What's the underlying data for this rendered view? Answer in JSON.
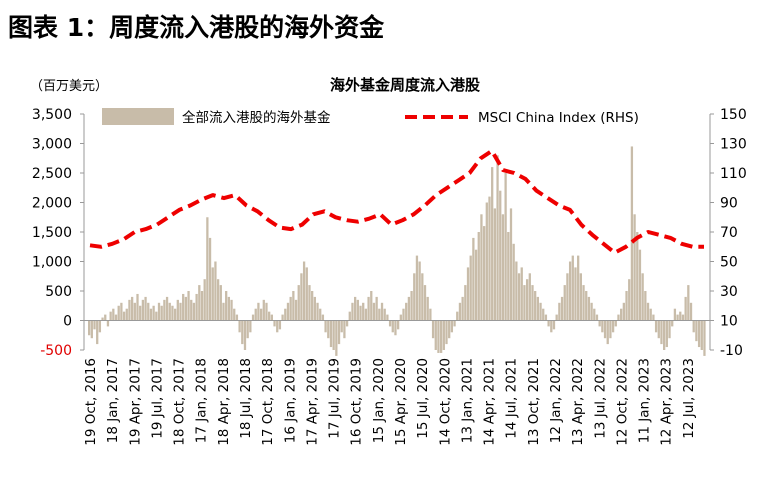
{
  "figure": {
    "title": "图表 1：周度流入港股的海外资金"
  },
  "chart_data": {
    "type": "bar+line",
    "title": "海外基金周度流入港股",
    "y_left_label": "（百万美元）",
    "y_left_ticks": [
      "3,500",
      "3,000",
      "2,500",
      "2,000",
      "1,500",
      "1,000",
      "500",
      "0",
      "-500"
    ],
    "y_left_values": [
      3500,
      3000,
      2500,
      2000,
      1500,
      1000,
      500,
      0,
      -500
    ],
    "y_left_range": [
      -500,
      3500
    ],
    "y_right_ticks": [
      "150",
      "130",
      "110",
      "90",
      "70",
      "50",
      "30",
      "10",
      "-10"
    ],
    "y_right_values": [
      150,
      130,
      110,
      90,
      70,
      50,
      30,
      10,
      -10
    ],
    "y_right_range": [
      -10,
      150
    ],
    "x_tick_labels": [
      "19 Oct, 2016",
      "18 Jan, 2017",
      "19 Apr, 2017",
      "19 Jul, 2017",
      "18 Oct, 2017",
      "17 Jan, 2018",
      "18 Apr, 2018",
      "18 Jul, 2018",
      "17 Oct, 2018",
      "16 Jan, 2019",
      "17 Apr, 2019",
      "17 Jul, 2019",
      "16 Oct, 2019",
      "15 Jan, 2020",
      "15 Apr, 2020",
      "15 Jul, 2020",
      "14 Oct, 2020",
      "13 Jan, 2021",
      "14 Apr, 2021",
      "14 Jul, 2021",
      "13 Oct, 2021",
      "12 Jan, 2022",
      "13 Apr, 2022",
      "13 Jul, 2022",
      "12 Oct, 2022",
      "11 Jan, 2023",
      "12 Apr, 2023",
      "12 Jul, 2023"
    ],
    "legend": {
      "bars": "全部流入港股的海外基金",
      "line": "MSCI China Index (RHS)"
    },
    "colors": {
      "bars": "#c8bca9",
      "line": "#ee0000",
      "negative_tick": "#e00000"
    },
    "bars_series": {
      "name": "全部流入港股的海外基金",
      "values": [
        -250,
        -300,
        -150,
        -400,
        -200,
        50,
        100,
        -100,
        150,
        200,
        100,
        250,
        300,
        150,
        200,
        350,
        400,
        300,
        450,
        250,
        350,
        400,
        300,
        200,
        250,
        150,
        300,
        250,
        350,
        400,
        300,
        250,
        200,
        350,
        300,
        450,
        400,
        500,
        350,
        300,
        450,
        600,
        500,
        700,
        1750,
        1400,
        900,
        1000,
        700,
        600,
        300,
        500,
        400,
        350,
        200,
        100,
        -200,
        -400,
        -500,
        -300,
        -200,
        100,
        200,
        300,
        200,
        350,
        300,
        150,
        100,
        -100,
        -200,
        -150,
        100,
        200,
        300,
        400,
        500,
        350,
        600,
        800,
        1000,
        900,
        600,
        500,
        400,
        300,
        200,
        100,
        -200,
        -300,
        -450,
        -500,
        -600,
        -400,
        -200,
        -300,
        -100,
        150,
        300,
        400,
        350,
        250,
        300,
        200,
        400,
        500,
        300,
        400,
        200,
        300,
        200,
        100,
        -100,
        -200,
        -250,
        -150,
        100,
        200,
        300,
        400,
        500,
        800,
        1100,
        1000,
        800,
        600,
        400,
        200,
        -300,
        -500,
        -550,
        -550,
        -500,
        -400,
        -300,
        -200,
        -100,
        150,
        300,
        400,
        600,
        900,
        1100,
        1400,
        1200,
        1500,
        1800,
        1600,
        2000,
        2100,
        2600,
        1900,
        2800,
        2200,
        1800,
        2500,
        1500,
        1900,
        1300,
        1000,
        800,
        900,
        600,
        700,
        800,
        600,
        500,
        400,
        300,
        200,
        100,
        -100,
        -200,
        -150,
        100,
        300,
        400,
        600,
        800,
        1000,
        1100,
        900,
        1100,
        800,
        600,
        500,
        400,
        300,
        200,
        100,
        -100,
        -200,
        -300,
        -400,
        -300,
        -200,
        -100,
        100,
        200,
        300,
        500,
        700,
        2950,
        1800,
        1500,
        1200,
        800,
        500,
        300,
        200,
        100,
        -200,
        -300,
        -400,
        -500,
        -450,
        -300,
        -100,
        200,
        100,
        150,
        100,
        400,
        600,
        300,
        -200,
        -350,
        -450,
        -500,
        -600
      ]
    },
    "line_series": {
      "name": "MSCI China Index (RHS)",
      "points": [
        [
          0,
          61
        ],
        [
          0.02,
          60
        ],
        [
          0.04,
          62
        ],
        [
          0.06,
          65
        ],
        [
          0.08,
          70
        ],
        [
          0.1,
          72
        ],
        [
          0.12,
          75
        ],
        [
          0.14,
          80
        ],
        [
          0.16,
          85
        ],
        [
          0.18,
          88
        ],
        [
          0.2,
          92
        ],
        [
          0.22,
          95
        ],
        [
          0.24,
          93
        ],
        [
          0.26,
          95
        ],
        [
          0.28,
          88
        ],
        [
          0.3,
          84
        ],
        [
          0.32,
          78
        ],
        [
          0.34,
          73
        ],
        [
          0.36,
          72
        ],
        [
          0.38,
          75
        ],
        [
          0.4,
          82
        ],
        [
          0.42,
          84
        ],
        [
          0.44,
          80
        ],
        [
          0.46,
          78
        ],
        [
          0.48,
          77
        ],
        [
          0.5,
          79
        ],
        [
          0.52,
          82
        ],
        [
          0.54,
          75
        ],
        [
          0.56,
          78
        ],
        [
          0.58,
          82
        ],
        [
          0.6,
          88
        ],
        [
          0.62,
          95
        ],
        [
          0.64,
          100
        ],
        [
          0.66,
          105
        ],
        [
          0.68,
          110
        ],
        [
          0.7,
          120
        ],
        [
          0.72,
          125
        ],
        [
          0.74,
          112
        ],
        [
          0.76,
          110
        ],
        [
          0.78,
          106
        ],
        [
          0.8,
          98
        ],
        [
          0.82,
          93
        ],
        [
          0.84,
          88
        ],
        [
          0.86,
          85
        ],
        [
          0.88,
          75
        ],
        [
          0.9,
          68
        ],
        [
          0.92,
          62
        ],
        [
          0.94,
          56
        ],
        [
          0.96,
          60
        ],
        [
          0.98,
          66
        ],
        [
          1.0,
          70
        ],
        [
          1.02,
          68
        ],
        [
          1.04,
          66
        ],
        [
          1.06,
          62
        ],
        [
          1.08,
          60
        ],
        [
          1.1,
          60
        ]
      ]
    }
  }
}
